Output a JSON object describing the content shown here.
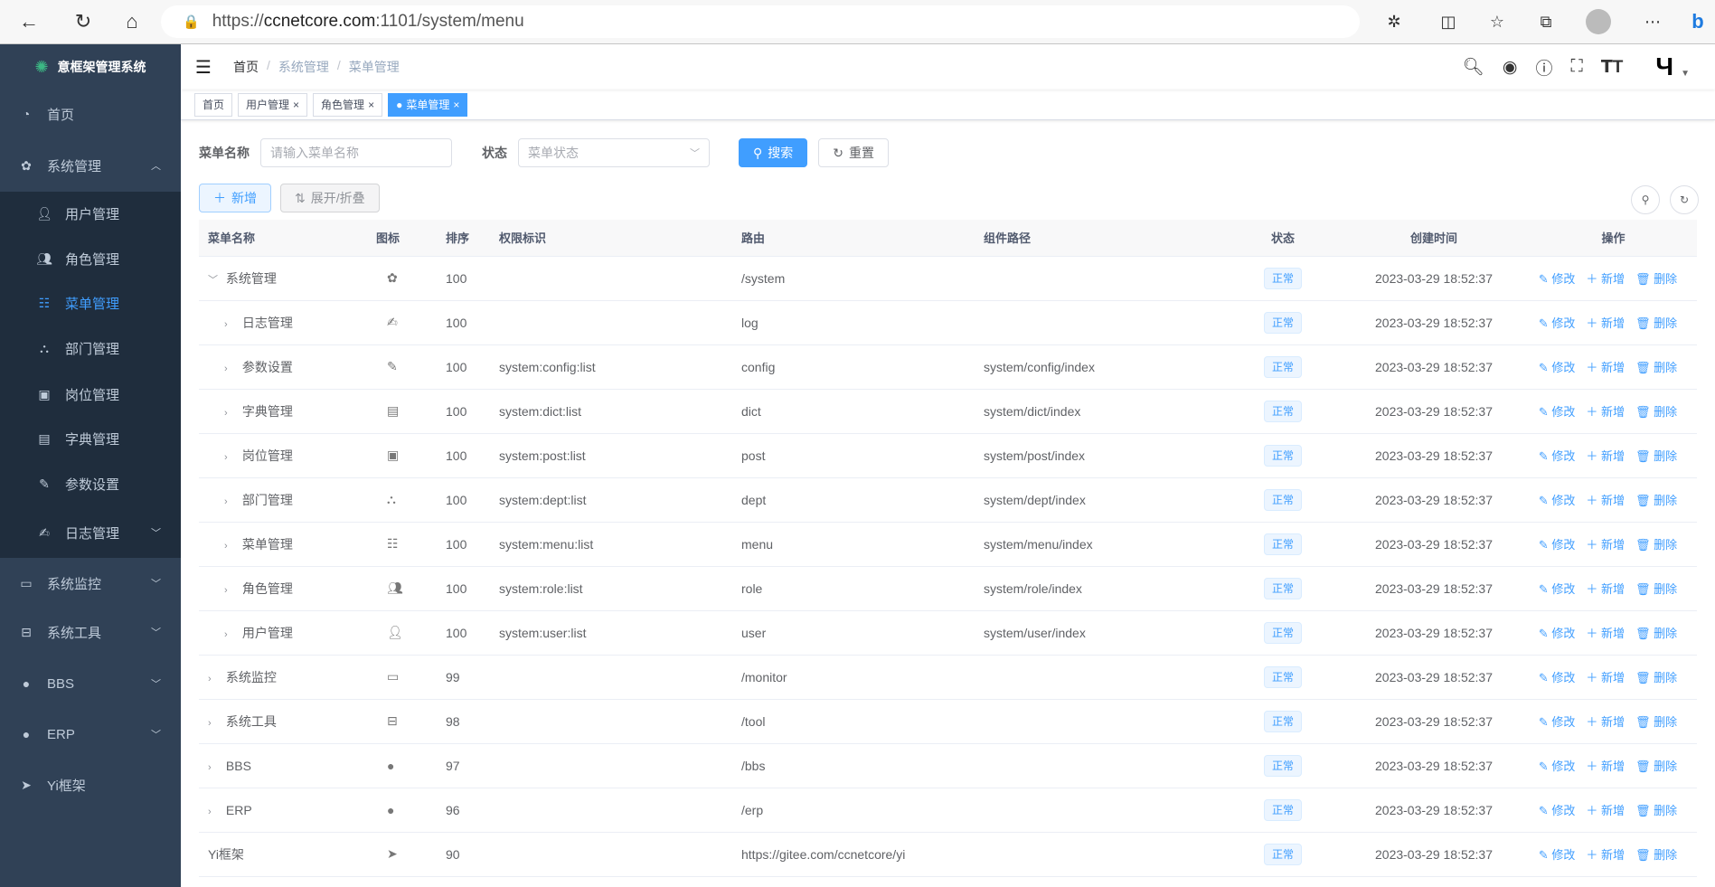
{
  "browser": {
    "url_scheme": "https://",
    "url_host": "ccnetcore.com",
    "url_rest": ":1101/system/menu"
  },
  "app": {
    "title": "意框架管理系统"
  },
  "sidebar": {
    "items": [
      {
        "label": "首页",
        "icon": "dashboard-icon",
        "level": 0
      },
      {
        "label": "系统管理",
        "icon": "gear-icon",
        "level": 0,
        "expanded": true
      },
      {
        "label": "用户管理",
        "icon": "user-icon",
        "level": 1
      },
      {
        "label": "角色管理",
        "icon": "peoples-icon",
        "level": 1
      },
      {
        "label": "菜单管理",
        "icon": "tree-table-icon",
        "level": 1,
        "active": true
      },
      {
        "label": "部门管理",
        "icon": "tree-icon",
        "level": 1
      },
      {
        "label": "岗位管理",
        "icon": "post-icon",
        "level": 1
      },
      {
        "label": "字典管理",
        "icon": "dict-icon",
        "level": 1
      },
      {
        "label": "参数设置",
        "icon": "edit-icon",
        "level": 1
      },
      {
        "label": "日志管理",
        "icon": "log-icon",
        "level": 1,
        "arrow": true
      },
      {
        "label": "系统监控",
        "icon": "monitor-icon",
        "level": 0,
        "arrow": true
      },
      {
        "label": "系统工具",
        "icon": "tool-icon",
        "level": 0,
        "arrow": true
      },
      {
        "label": "BBS",
        "icon": "globe-icon",
        "level": 0,
        "arrow": true
      },
      {
        "label": "ERP",
        "icon": "globe-icon",
        "level": 0,
        "arrow": true
      },
      {
        "label": "Yi框架",
        "icon": "send-icon",
        "level": 0
      }
    ]
  },
  "breadcrumb": [
    "首页",
    "系统管理",
    "菜单管理"
  ],
  "tags": [
    {
      "label": "首页"
    },
    {
      "label": "用户管理",
      "closable": true
    },
    {
      "label": "角色管理",
      "closable": true
    },
    {
      "label": "菜单管理",
      "closable": true,
      "active": true
    }
  ],
  "search": {
    "name_label": "菜单名称",
    "name_placeholder": "请输入菜单名称",
    "status_label": "状态",
    "status_placeholder": "菜单状态",
    "search_btn": "搜索",
    "reset_btn": "重置"
  },
  "toolbar": {
    "add_btn": "新增",
    "expand_btn": "展开/折叠"
  },
  "table": {
    "headers": [
      "菜单名称",
      "图标",
      "排序",
      "权限标识",
      "路由",
      "组件路径",
      "状态",
      "创建时间",
      "操作"
    ],
    "actions": [
      "修改",
      "新增",
      "删除"
    ],
    "rows": [
      {
        "name": "系统管理",
        "level": 0,
        "toggle": "open",
        "icon": "gear-icon",
        "sort": "100",
        "perm": "",
        "route": "/system",
        "component": "",
        "status": "正常",
        "time": "2023-03-29 18:52:37"
      },
      {
        "name": "日志管理",
        "level": 1,
        "toggle": "closed",
        "icon": "log-icon",
        "sort": "100",
        "perm": "",
        "route": "log",
        "component": "",
        "status": "正常",
        "time": "2023-03-29 18:52:37"
      },
      {
        "name": "参数设置",
        "level": 1,
        "toggle": "closed",
        "icon": "edit-icon",
        "sort": "100",
        "perm": "system:config:list",
        "route": "config",
        "component": "system/config/index",
        "status": "正常",
        "time": "2023-03-29 18:52:37"
      },
      {
        "name": "字典管理",
        "level": 1,
        "toggle": "closed",
        "icon": "dict-icon",
        "sort": "100",
        "perm": "system:dict:list",
        "route": "dict",
        "component": "system/dict/index",
        "status": "正常",
        "time": "2023-03-29 18:52:37"
      },
      {
        "name": "岗位管理",
        "level": 1,
        "toggle": "closed",
        "icon": "post-icon",
        "sort": "100",
        "perm": "system:post:list",
        "route": "post",
        "component": "system/post/index",
        "status": "正常",
        "time": "2023-03-29 18:52:37"
      },
      {
        "name": "部门管理",
        "level": 1,
        "toggle": "closed",
        "icon": "tree-icon",
        "sort": "100",
        "perm": "system:dept:list",
        "route": "dept",
        "component": "system/dept/index",
        "status": "正常",
        "time": "2023-03-29 18:52:37"
      },
      {
        "name": "菜单管理",
        "level": 1,
        "toggle": "closed",
        "icon": "tree-table-icon",
        "sort": "100",
        "perm": "system:menu:list",
        "route": "menu",
        "component": "system/menu/index",
        "status": "正常",
        "time": "2023-03-29 18:52:37"
      },
      {
        "name": "角色管理",
        "level": 1,
        "toggle": "closed",
        "icon": "peoples-icon",
        "sort": "100",
        "perm": "system:role:list",
        "route": "role",
        "component": "system/role/index",
        "status": "正常",
        "time": "2023-03-29 18:52:37"
      },
      {
        "name": "用户管理",
        "level": 1,
        "toggle": "closed",
        "icon": "user-icon",
        "sort": "100",
        "perm": "system:user:list",
        "route": "user",
        "component": "system/user/index",
        "status": "正常",
        "time": "2023-03-29 18:52:37"
      },
      {
        "name": "系统监控",
        "level": 0,
        "toggle": "closed",
        "icon": "monitor-icon",
        "sort": "99",
        "perm": "",
        "route": "/monitor",
        "component": "",
        "status": "正常",
        "time": "2023-03-29 18:52:37"
      },
      {
        "name": "系统工具",
        "level": 0,
        "toggle": "closed",
        "icon": "tool-icon",
        "sort": "98",
        "perm": "",
        "route": "/tool",
        "component": "",
        "status": "正常",
        "time": "2023-03-29 18:52:37"
      },
      {
        "name": "BBS",
        "level": 0,
        "toggle": "closed",
        "icon": "globe-icon",
        "sort": "97",
        "perm": "",
        "route": "/bbs",
        "component": "",
        "status": "正常",
        "time": "2023-03-29 18:52:37"
      },
      {
        "name": "ERP",
        "level": 0,
        "toggle": "closed",
        "icon": "globe-icon",
        "sort": "96",
        "perm": "",
        "route": "/erp",
        "component": "",
        "status": "正常",
        "time": "2023-03-29 18:52:37"
      },
      {
        "name": "Yi框架",
        "level": 0,
        "toggle": "none",
        "icon": "send-icon",
        "sort": "90",
        "perm": "",
        "route": "https://gitee.com/ccnetcore/yi",
        "component": "",
        "status": "正常",
        "time": "2023-03-29 18:52:37"
      }
    ]
  },
  "colors": {
    "sidebar": "#304156",
    "submenu": "#1f2d3d",
    "primary": "#409eff"
  }
}
